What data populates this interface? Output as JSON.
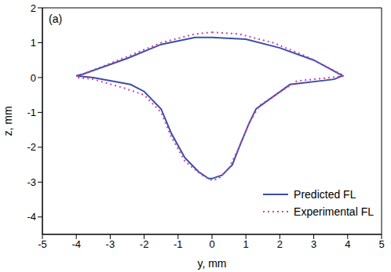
{
  "chart_data": {
    "type": "line",
    "panel_label": "(a)",
    "x_label": "y, mm",
    "y_label": "z, mm",
    "xlim": [
      -5,
      5
    ],
    "xticks": [
      -5,
      -4,
      -3,
      -2,
      -1,
      0,
      1,
      2,
      3,
      4,
      5
    ],
    "ylim": [
      -4.5,
      2
    ],
    "yticks": [
      -4,
      -3,
      -2,
      -1,
      0,
      1,
      2
    ],
    "legend": "lower right",
    "series": [
      {
        "name": "Predicted FL",
        "color": "#3b4ea8",
        "line_style": "solid",
        "marker": "none",
        "x": [
          0,
          1,
          2,
          3,
          3.85,
          3.6,
          2.3,
          1.3,
          1.1,
          0.8,
          0.6,
          0.3,
          0,
          -0.1,
          -0.4,
          -0.8,
          -1.2,
          -1.5,
          -2.0,
          -2.4,
          -3.5,
          -4.0,
          -3.8,
          -2.5,
          -1.5,
          -0.5,
          0
        ],
        "values": [
          1.15,
          1.1,
          0.85,
          0.5,
          0.05,
          -0.05,
          -0.2,
          -0.9,
          -1.3,
          -2.0,
          -2.5,
          -2.8,
          -2.9,
          -2.9,
          -2.7,
          -2.3,
          -1.6,
          -0.9,
          -0.4,
          -0.2,
          0.0,
          0.05,
          0.1,
          0.55,
          0.95,
          1.15,
          1.15
        ]
      },
      {
        "name": "Experimental FL",
        "color": "#cc44aa",
        "line_style": "dotted",
        "marker": "none",
        "x": [
          0,
          0.8,
          1.8,
          2.8,
          3.6,
          3.9,
          3.5,
          2.5,
          1.4,
          1.1,
          0.8,
          0.5,
          0.2,
          0,
          -0.3,
          -0.8,
          -1.2,
          -1.5,
          -2,
          -2.6,
          -3.5,
          -4.0,
          -3.8,
          -2.5,
          -1.5,
          -0.5,
          0
        ],
        "values": [
          1.3,
          1.25,
          1.0,
          0.6,
          0.2,
          0.05,
          0,
          -0.1,
          -0.8,
          -1.3,
          -2.0,
          -2.6,
          -2.9,
          -2.95,
          -2.8,
          -2.4,
          -1.7,
          -1.0,
          -0.5,
          -0.3,
          -0.05,
          0.0,
          0.1,
          0.6,
          1.0,
          1.25,
          1.3
        ]
      }
    ]
  }
}
